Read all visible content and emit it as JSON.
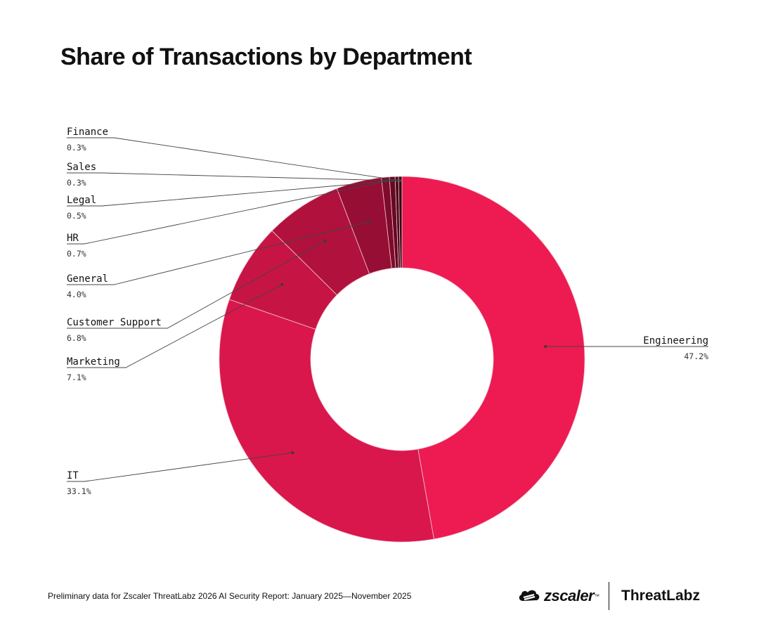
{
  "title": "Share of Transactions by Department",
  "footer": "Preliminary data for Zscaler ThreatLabz 2026 AI Security Report: January 2025—November 2025",
  "brand": {
    "zscaler": "zscaler",
    "zscaler_tm": "™",
    "threatlabz": "ThreatLabz"
  },
  "chart_data": {
    "type": "pie",
    "style": "donut",
    "title": "Share of Transactions by Department",
    "unit": "%",
    "slices": [
      {
        "label": "Engineering",
        "value": 47.2,
        "display": "47.2%",
        "color": "#ED1B52"
      },
      {
        "label": "IT",
        "value": 33.1,
        "display": "33.1%",
        "color": "#D9174C"
      },
      {
        "label": "Marketing",
        "value": 7.1,
        "display": "7.1%",
        "color": "#C61545"
      },
      {
        "label": "Customer Support",
        "value": 6.8,
        "display": "6.8%",
        "color": "#B0123D"
      },
      {
        "label": "General",
        "value": 4.0,
        "display": "4.0%",
        "color": "#960E34"
      },
      {
        "label": "HR",
        "value": 0.7,
        "display": "0.7%",
        "color": "#7E0B2B"
      },
      {
        "label": "Legal",
        "value": 0.5,
        "display": "0.5%",
        "color": "#660923"
      },
      {
        "label": "Sales",
        "value": 0.3,
        "display": "0.3%",
        "color": "#4E071B"
      },
      {
        "label": "Finance",
        "value": 0.3,
        "display": "0.3%",
        "color": "#380513"
      }
    ],
    "label_placement": [
      "right",
      "left",
      "left",
      "left",
      "left",
      "left",
      "left",
      "left",
      "left"
    ]
  }
}
